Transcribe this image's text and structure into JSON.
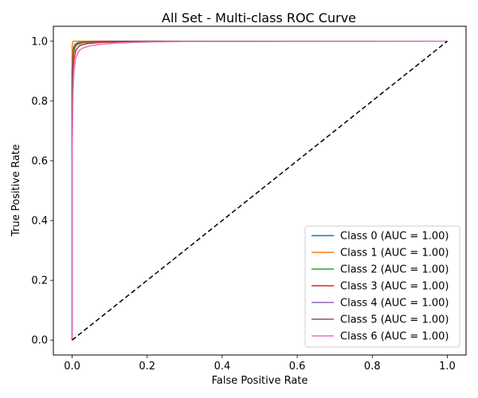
{
  "chart_data": {
    "type": "line",
    "title": "All Set - Multi-class ROC Curve",
    "xlabel": "False Positive Rate",
    "ylabel": "True Positive Rate",
    "xlim": [
      -0.05,
      1.05
    ],
    "ylim": [
      -0.05,
      1.05
    ],
    "xticks": [
      0.0,
      0.2,
      0.4,
      0.6,
      0.8,
      1.0
    ],
    "yticks": [
      0.0,
      0.2,
      0.4,
      0.6,
      0.8,
      1.0
    ],
    "xtick_labels": [
      "0.0",
      "0.2",
      "0.4",
      "0.6",
      "0.8",
      "1.0"
    ],
    "ytick_labels": [
      "0.0",
      "0.2",
      "0.4",
      "0.6",
      "0.8",
      "1.0"
    ],
    "grid": false,
    "legend_position": "lower-right",
    "series": [
      {
        "name": "Class 0 (AUC = 1.00)",
        "color": "#1f77b4",
        "x": [
          0,
          0.0,
          0.002,
          0.004,
          0.008,
          0.015,
          0.03,
          0.06,
          0.1,
          0.2,
          1.0
        ],
        "y": [
          0,
          0.9,
          0.96,
          0.98,
          0.99,
          0.995,
          0.998,
          0.999,
          1.0,
          1.0,
          1.0
        ]
      },
      {
        "name": "Class 1 (AUC = 1.00)",
        "color": "#ff7f0e",
        "x": [
          0,
          0.0,
          0.001,
          0.003,
          0.006,
          1.0
        ],
        "y": [
          0,
          0.98,
          0.995,
          0.999,
          1.0,
          1.0
        ]
      },
      {
        "name": "Class 2 (AUC = 1.00)",
        "color": "#2ca02c",
        "x": [
          0,
          0.0,
          0.002,
          0.004,
          0.008,
          0.015,
          0.03,
          0.06,
          0.1,
          0.2,
          1.0
        ],
        "y": [
          0,
          0.85,
          0.93,
          0.96,
          0.98,
          0.99,
          0.995,
          0.998,
          0.999,
          1.0,
          1.0
        ]
      },
      {
        "name": "Class 3 (AUC = 1.00)",
        "color": "#d62728",
        "x": [
          0,
          0.0,
          0.002,
          0.005,
          0.01,
          0.02,
          0.04,
          0.08,
          0.15,
          0.25,
          1.0
        ],
        "y": [
          0,
          0.8,
          0.9,
          0.94,
          0.97,
          0.985,
          0.992,
          0.996,
          0.998,
          1.0,
          1.0
        ]
      },
      {
        "name": "Class 4 (AUC = 1.00)",
        "color": "#9467bd",
        "x": [
          0,
          0.0,
          0.002,
          0.004,
          0.008,
          0.015,
          0.03,
          0.06,
          0.1,
          0.2,
          1.0
        ],
        "y": [
          0,
          0.88,
          0.95,
          0.975,
          0.988,
          0.994,
          0.997,
          0.999,
          1.0,
          1.0,
          1.0
        ]
      },
      {
        "name": "Class 5 (AUC = 1.00)",
        "color": "#8c564b",
        "x": [
          0,
          0.0,
          0.002,
          0.004,
          0.008,
          0.015,
          0.03,
          0.06,
          0.1,
          0.2,
          1.0
        ],
        "y": [
          0,
          0.9,
          0.955,
          0.975,
          0.988,
          0.993,
          0.997,
          0.999,
          1.0,
          1.0,
          1.0
        ]
      },
      {
        "name": "Class 6 (AUC = 1.00)",
        "color": "#e377c2",
        "x": [
          0,
          0.0,
          0.002,
          0.004,
          0.007,
          0.01,
          0.015,
          0.02,
          0.03,
          0.05,
          0.08,
          0.12,
          0.2,
          0.3,
          1.0
        ],
        "y": [
          0,
          0.6,
          0.8,
          0.88,
          0.92,
          0.945,
          0.96,
          0.97,
          0.978,
          0.985,
          0.99,
          0.994,
          0.997,
          0.999,
          1.0
        ]
      }
    ],
    "reference_line": {
      "x": [
        0,
        1
      ],
      "y": [
        0,
        1
      ],
      "color": "#000000",
      "style": "dashed"
    }
  }
}
